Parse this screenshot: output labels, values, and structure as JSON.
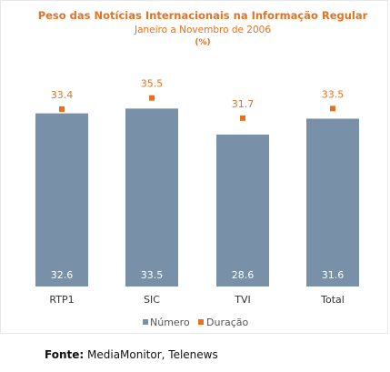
{
  "chart_data": {
    "type": "bar",
    "title": "Peso das Notícias Internacionais na Informação Regular",
    "subtitle": "Janeiro a Novembro de 2006",
    "unit": "(%)",
    "categories": [
      "RTP1",
      "SIC",
      "TVI",
      "Total"
    ],
    "series": [
      {
        "name": "Número",
        "kind": "bar",
        "color": "#7890a8",
        "values": [
          32.6,
          33.5,
          28.6,
          31.6
        ]
      },
      {
        "name": "Duração",
        "kind": "marker",
        "color": "#e8701e",
        "values": [
          33.4,
          35.5,
          31.7,
          33.5
        ]
      }
    ],
    "legend_position": "bottom",
    "grid": false
  },
  "source": {
    "label": "Fonte:",
    "text": "MediaMonitor, Telenews"
  }
}
